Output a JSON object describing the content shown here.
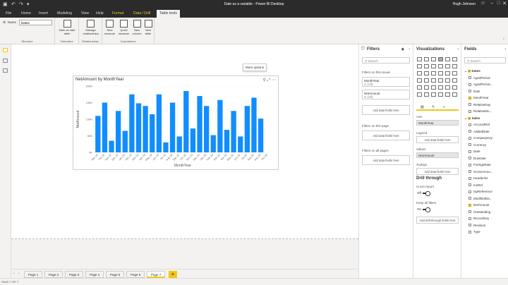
{
  "window": {
    "title": "Date as a variable - Power BI Desktop",
    "user": "Hugh Johnson"
  },
  "menu_tabs": [
    {
      "label": "File",
      "kind": "normal"
    },
    {
      "label": "Home",
      "kind": "normal"
    },
    {
      "label": "Insert",
      "kind": "normal"
    },
    {
      "label": "Modeling",
      "kind": "normal"
    },
    {
      "label": "View",
      "kind": "normal"
    },
    {
      "label": "Help",
      "kind": "normal"
    },
    {
      "label": "Format",
      "kind": "ctx"
    },
    {
      "label": "Data / Drill",
      "kind": "ctx"
    },
    {
      "label": "Table tools",
      "kind": "active"
    }
  ],
  "ribbon": {
    "name_label": "Name",
    "name_value": "Dates",
    "groups": {
      "structure": "Structure",
      "calendars": "Calendars",
      "relationships": "Relationships",
      "calculations": "Calculations"
    },
    "buttons": {
      "mark_date": "Mark as date table",
      "manage_rel": "Manage relationships",
      "new_measure": "New measure",
      "quick_measure": "Quick measure",
      "new_column": "New column",
      "new_table": "New table"
    }
  },
  "visual": {
    "tooltip": "More options",
    "ylabel": "NetAmount",
    "xlabel": "MonthYear"
  },
  "chart_data": {
    "type": "bar",
    "title": "NetAmount by MonthYear",
    "xlabel": "MonthYear",
    "ylabel": "NetAmount",
    "ylim": [
      0,
      200000
    ],
    "yticks": [
      "0K",
      "50K",
      "100K",
      "150K",
      "200K"
    ],
    "categories": [
      "Sep-18",
      "Oct-18",
      "Nov-18",
      "Dec-18",
      "Jan-19",
      "Feb-19",
      "Mar-19",
      "Apr-19",
      "May-19",
      "Jun-19",
      "Jul-19",
      "Aug-19",
      "Sep-19",
      "Oct-19",
      "Nov-19",
      "Dec-19",
      "Jan-20",
      "Feb-20",
      "Mar-20",
      "Apr-20",
      "May-20",
      "Jun-20",
      "Jul-20",
      "Aug-20",
      "Sep-20",
      "Oct-20"
    ],
    "tick_labels": [
      "Sep 18",
      "Oct 18",
      "Nov 18",
      "Dec 18",
      "Jan 19",
      "Feb 19",
      "Mar 19",
      "Apr 19",
      "May 19",
      "Jun 19",
      "Jul 19",
      "Aug 19",
      "Sep 19",
      "Oct 19",
      "Nov 19",
      "Dec 19",
      "Jan 20",
      "Feb 20",
      "Mar 20",
      "Apr 20",
      "May 20",
      "Jun 20",
      "Jul 20",
      "Aug 20",
      "Sep 20",
      "Oct 20"
    ],
    "values": [
      110000,
      150000,
      35000,
      125000,
      65000,
      175000,
      148000,
      140000,
      115000,
      175000,
      30000,
      150000,
      48000,
      185000,
      72000,
      170000,
      140000,
      52000,
      158000,
      68000,
      125000,
      48000,
      140000,
      165000,
      102000,
      0
    ],
    "color": "#118dff"
  },
  "filters": {
    "title": "Filters",
    "search": "Search",
    "on_visual": "Filters on this visual",
    "visual_items": [
      {
        "name": "MonthYear",
        "sub": "is (All)"
      },
      {
        "name": "NetAmount",
        "sub": "is (All)"
      }
    ],
    "add_fields": "Add data fields here",
    "on_page": "Filters on this page",
    "all_pages": "Filters on all pages"
  },
  "viz": {
    "title": "Visualizations",
    "axis": "Axis",
    "axis_field": "MonthYear",
    "legend": "Legend",
    "values": "Values",
    "values_field": "NetAmount",
    "tooltips": "Tooltips",
    "add_fields": "Add data fields here",
    "drill": "Drill through",
    "cross_report": "Cross-report",
    "off": "Off",
    "keep_filters": "Keep all filters",
    "on": "On",
    "add_drill": "Add drill-through fields here"
  },
  "fields": {
    "title": "Fields",
    "search": "Search",
    "items": [
      {
        "label": "Dates",
        "type": "table",
        "checked": false
      },
      {
        "label": "AgedPeriod",
        "type": "field",
        "checked": false
      },
      {
        "label": "AgedPeriod...",
        "type": "field",
        "checked": false
      },
      {
        "label": "Date",
        "type": "field",
        "checked": false
      },
      {
        "label": "MonthYear",
        "type": "field",
        "checked": true
      },
      {
        "label": "RelativeDay",
        "type": "field",
        "checked": false
      },
      {
        "label": "RelativeMo...",
        "type": "field",
        "checked": false
      },
      {
        "label": "Sales",
        "type": "table",
        "checked": false
      },
      {
        "label": "AccountRef",
        "type": "field",
        "checked": false
      },
      {
        "label": "AddedDate",
        "type": "field",
        "checked": false
      },
      {
        "label": "CompanyKey",
        "type": "field",
        "checked": false
      },
      {
        "label": "Currency",
        "type": "field",
        "checked": false
      },
      {
        "label": "Date",
        "type": "field",
        "checked": false
      },
      {
        "label": "DueDate",
        "type": "field",
        "checked": false
      },
      {
        "label": "ForeignRate",
        "type": "field",
        "checked": false
      },
      {
        "label": "GrossAmou...",
        "type": "field",
        "checked": false
      },
      {
        "label": "HeaderNo",
        "type": "field",
        "checked": false
      },
      {
        "label": "InvRef",
        "type": "field",
        "checked": false
      },
      {
        "label": "IspReference",
        "type": "field",
        "checked": false
      },
      {
        "label": "ModifiedDa...",
        "type": "field",
        "checked": false
      },
      {
        "label": "NetAmount",
        "type": "field",
        "checked": true
      },
      {
        "label": "Outstanding",
        "type": "field",
        "checked": false
      },
      {
        "label": "RecordKey",
        "type": "field",
        "checked": false
      },
      {
        "label": "Revision",
        "type": "field",
        "checked": false
      },
      {
        "label": "Type",
        "type": "field",
        "checked": false
      }
    ]
  },
  "pages": [
    "Page 1",
    "Page 2",
    "Page 3",
    "Page 4",
    "Page 5",
    "Page 6",
    "Page 7"
  ],
  "selected_page": 6,
  "status": "PAGE 7 OF 7"
}
